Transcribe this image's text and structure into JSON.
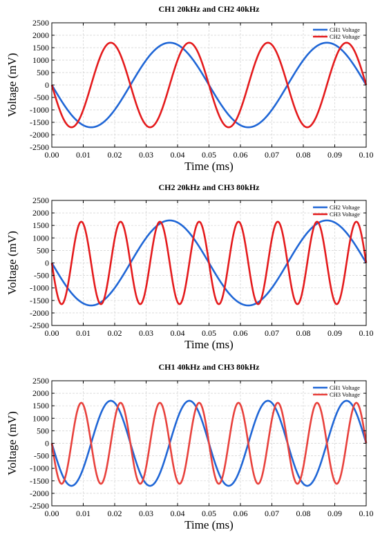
{
  "chart_data": [
    {
      "type": "line",
      "title": "CH1 20kHz and CH2 40kHz",
      "xlabel": "Time (ms)",
      "ylabel": "Voltage (mV)",
      "xlim": [
        0,
        0.1
      ],
      "ylim": [
        -2500,
        2500
      ],
      "xticks": [
        "0.00",
        "0.01",
        "0.02",
        "0.03",
        "0.04",
        "0.05",
        "0.06",
        "0.07",
        "0.08",
        "0.09",
        "0.10"
      ],
      "yticks": [
        "2500",
        "2000",
        "1500",
        "1000",
        "500",
        "0",
        "-500",
        "-1000",
        "-1500",
        "-2000",
        "-2500"
      ],
      "grid": true,
      "legend_position": "top-right",
      "series": [
        {
          "name": "CH1 Voltage",
          "color": "#1f66d6",
          "amplitude": 1700,
          "frequency_khz": 20,
          "phase_deg": 180
        },
        {
          "name": "CH2 Voltage",
          "color": "#e41a1c",
          "amplitude": 1700,
          "frequency_khz": 40,
          "phase_deg": 180
        }
      ]
    },
    {
      "type": "line",
      "title": "CH2 20kHz and CH3 80kHz",
      "xlabel": "Time (ms)",
      "ylabel": "Voltage (mV)",
      "xlim": [
        0,
        0.1
      ],
      "ylim": [
        -2500,
        2500
      ],
      "xticks": [
        "0.00",
        "0.01",
        "0.02",
        "0.03",
        "0.04",
        "0.05",
        "0.06",
        "0.07",
        "0.08",
        "0.09",
        "0.10"
      ],
      "yticks": [
        "2500",
        "2000",
        "1500",
        "1000",
        "500",
        "0",
        "-500",
        "-1000",
        "-1500",
        "-2000",
        "-2500"
      ],
      "grid": true,
      "legend_position": "top-right",
      "series": [
        {
          "name": "CH2 Voltage",
          "color": "#1f66d6",
          "amplitude": 1700,
          "frequency_khz": 20,
          "phase_deg": 180
        },
        {
          "name": "CH3 Voltage",
          "color": "#e41a1c",
          "amplitude": 1650,
          "frequency_khz": 80,
          "phase_deg": 180
        }
      ]
    },
    {
      "type": "line",
      "title": "CH1 40kHz and CH3 80kHz",
      "xlabel": "Time (ms)",
      "ylabel": "Voltage (mV)",
      "xlim": [
        0,
        0.1
      ],
      "ylim": [
        -2500,
        2500
      ],
      "xticks": [
        "0.00",
        "0.01",
        "0.02",
        "0.03",
        "0.04",
        "0.05",
        "0.06",
        "0.07",
        "0.08",
        "0.09",
        "0.10"
      ],
      "yticks": [
        "2500",
        "2000",
        "1500",
        "1000",
        "500",
        "0",
        "-500",
        "-1000",
        "-1500",
        "-2000",
        "-2500"
      ],
      "grid": true,
      "legend_position": "top-right",
      "series": [
        {
          "name": "CH1 Voltage",
          "color": "#1f66d6",
          "amplitude": 1700,
          "frequency_khz": 40,
          "phase_deg": 180
        },
        {
          "name": "CH3 Voltage",
          "color": "#e8413c",
          "amplitude": 1620,
          "frequency_khz": 80,
          "phase_deg": 180
        }
      ]
    }
  ]
}
